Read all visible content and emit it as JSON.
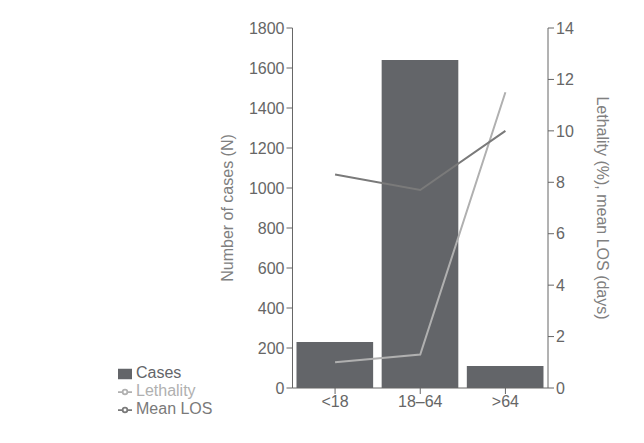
{
  "chart_data": {
    "type": "bar",
    "categories": [
      "<18",
      "18–64",
      ">64"
    ],
    "series": [
      {
        "name": "Cases",
        "type": "bar",
        "color": "#636569",
        "values": [
          230,
          1640,
          110
        ]
      },
      {
        "name": "Lethality",
        "type": "line",
        "color": "#b0b0b0",
        "axis": "y2",
        "values": [
          1.0,
          1.3,
          11.5
        ]
      },
      {
        "name": "Mean LOS",
        "type": "line",
        "color": "#7a7a7a",
        "axis": "y2",
        "values": [
          8.3,
          7.7,
          10.0
        ]
      }
    ],
    "ylim": [
      0,
      1800
    ],
    "yticks": [
      0,
      200,
      400,
      600,
      800,
      1000,
      1200,
      1400,
      1600,
      1800
    ],
    "y2lim": [
      0,
      14
    ],
    "y2ticks": [
      0,
      2,
      4,
      6,
      8,
      10,
      12,
      14
    ],
    "ylabel": "Number of cases (N)",
    "y2label": "Lethality (%), mean LOS (days)",
    "grid": false,
    "legend": "bottom"
  }
}
